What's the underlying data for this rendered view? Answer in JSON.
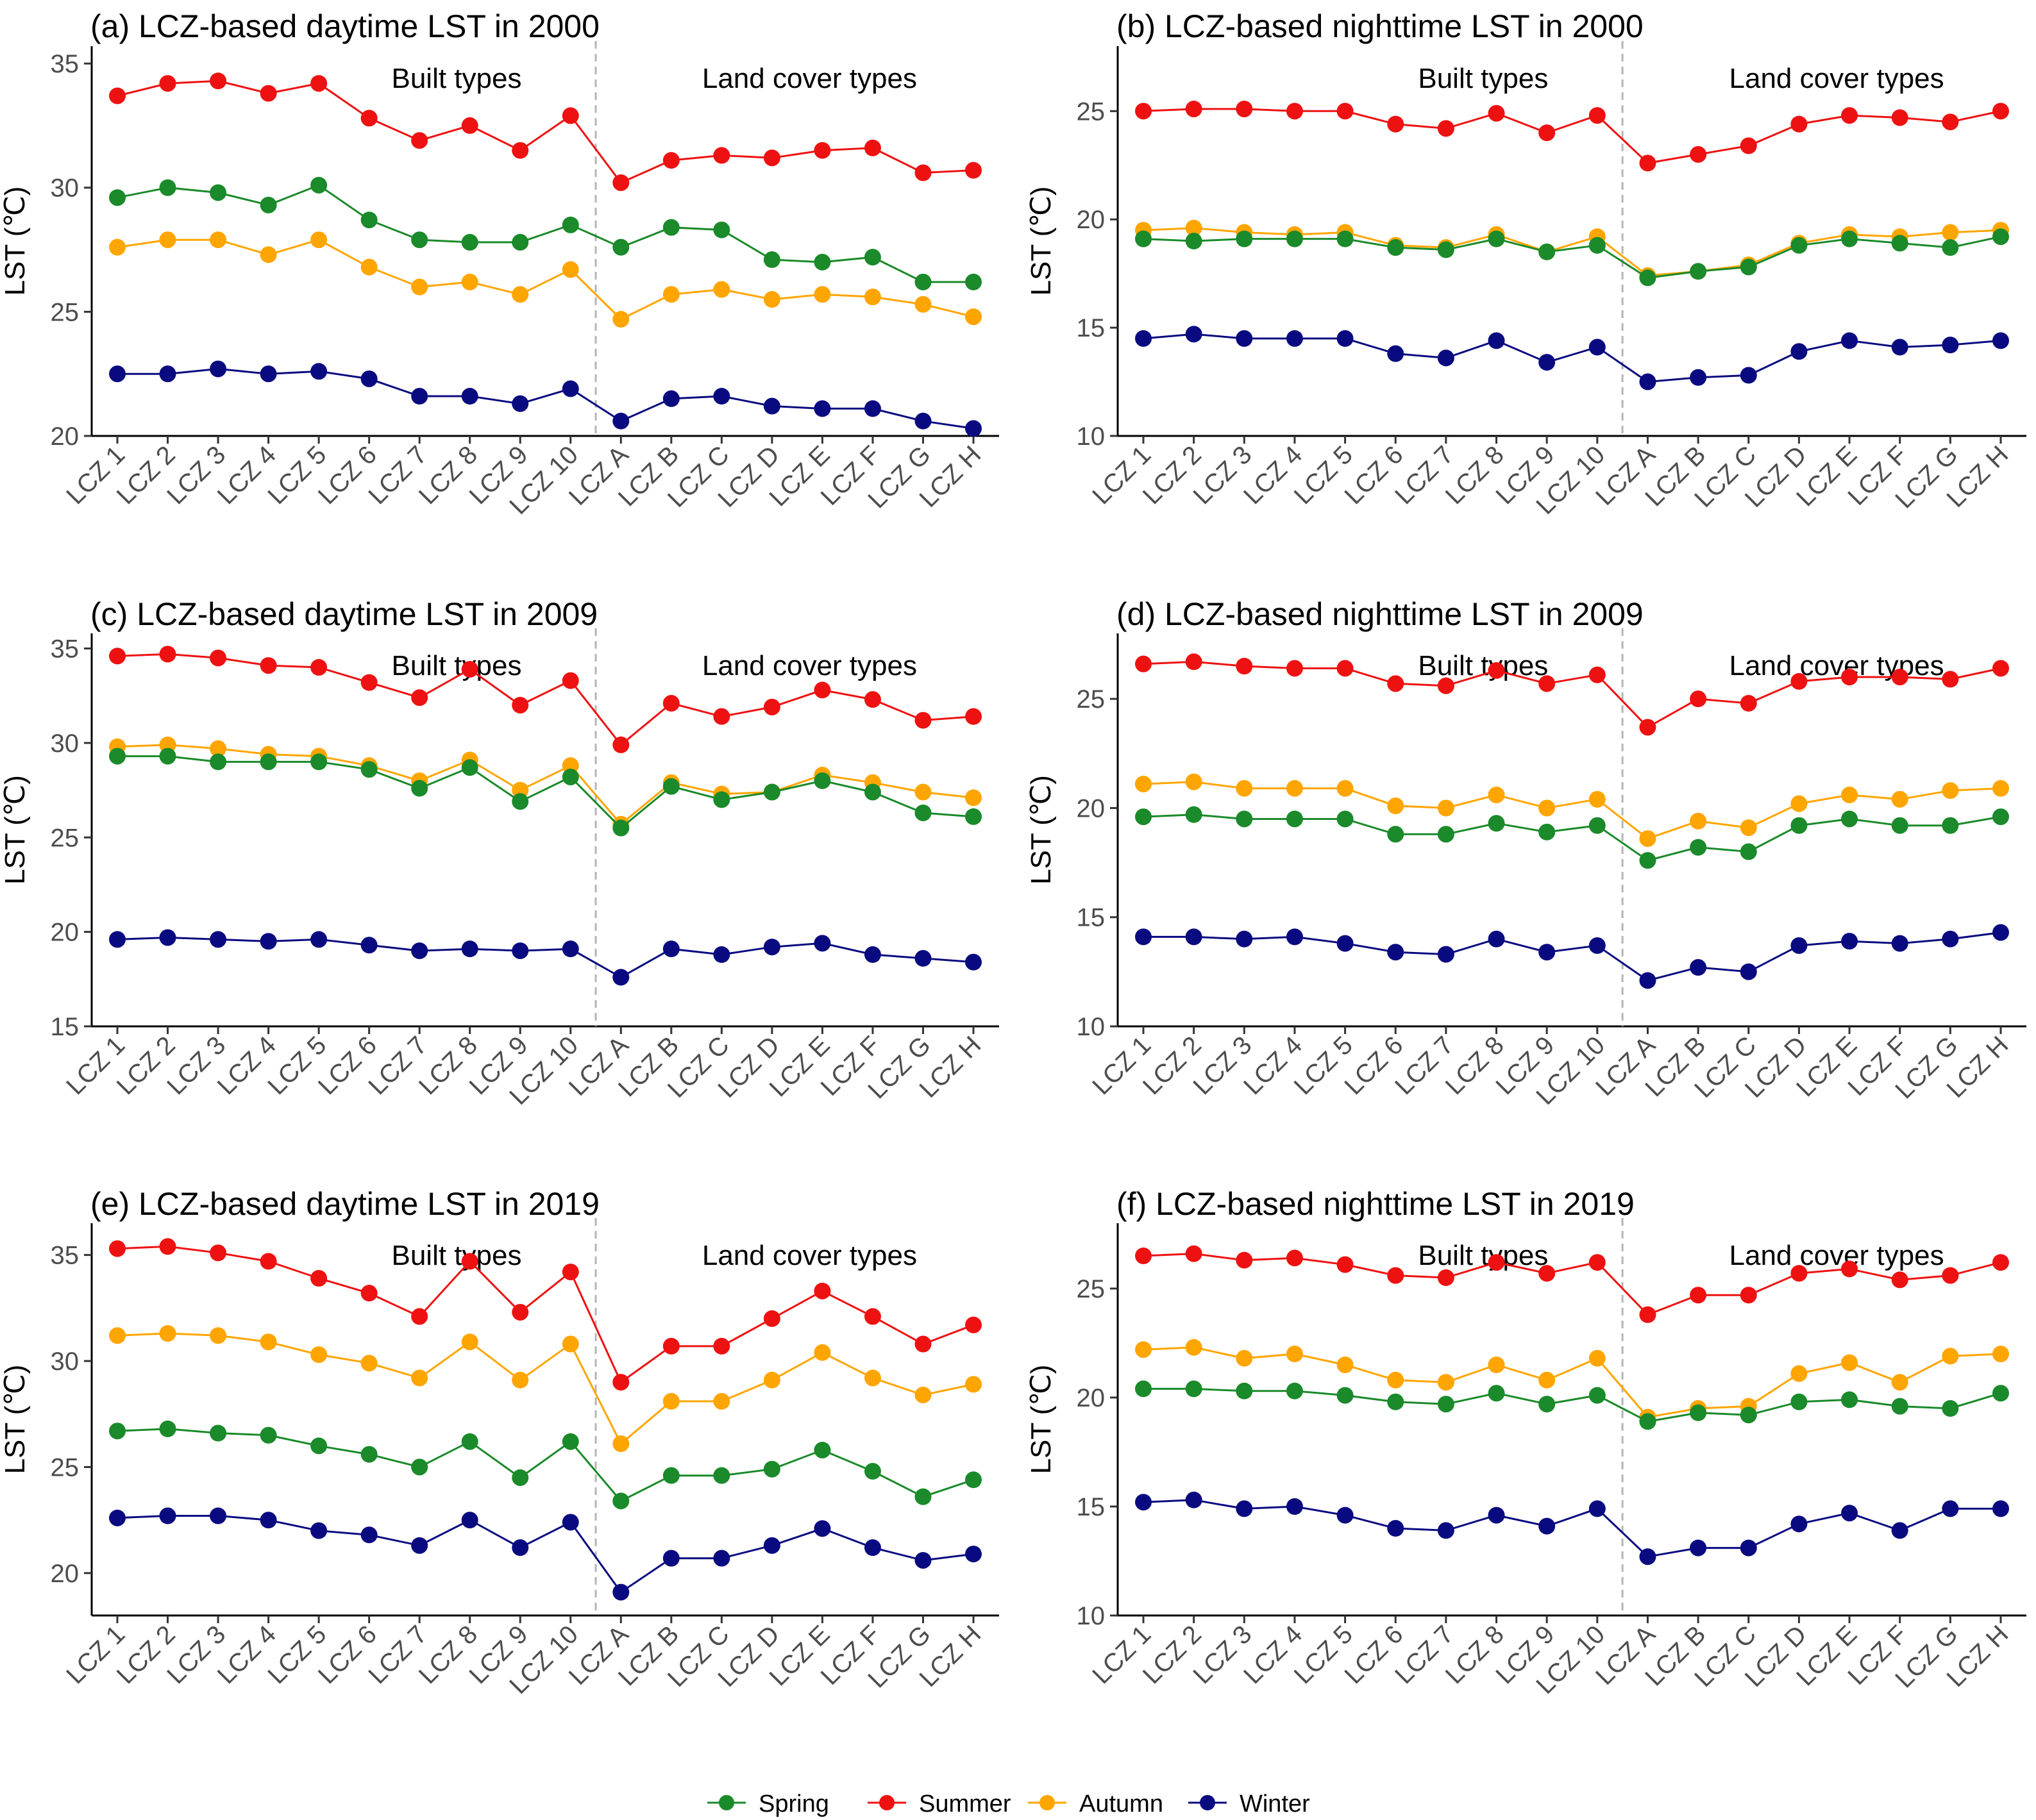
{
  "chart_data": {
    "type": "line",
    "legend": {
      "position": "bottom",
      "entries": [
        {
          "name": "Spring",
          "color": "#1a8a2a"
        },
        {
          "name": "Summer",
          "color": "#ee1111"
        },
        {
          "name": "Autumn",
          "color": "#ffa500"
        },
        {
          "name": "Winter",
          "color": "#0a0a80"
        }
      ]
    },
    "categories": [
      "LCZ 1",
      "LCZ 2",
      "LCZ 3",
      "LCZ 4",
      "LCZ 5",
      "LCZ 6",
      "LCZ 7",
      "LCZ 8",
      "LCZ 9",
      "LCZ 10",
      "LCZ A",
      "LCZ B",
      "LCZ C",
      "LCZ D",
      "LCZ E",
      "LCZ F",
      "LCZ G",
      "LCZ H"
    ],
    "group_labels": {
      "built": "Built types",
      "land": "Land cover types"
    },
    "ylabel": "LST (℃)",
    "panels": [
      {
        "title": "(a) LCZ-based daytime LST in 2000",
        "ylim": [
          20,
          35.7
        ],
        "yticks": [
          20,
          25,
          30,
          35
        ],
        "series": [
          {
            "name": "Spring",
            "values": [
              29.6,
              30.0,
              29.8,
              29.3,
              30.1,
              28.7,
              27.9,
              27.8,
              27.8,
              28.5,
              27.6,
              28.4,
              28.3,
              27.1,
              27.0,
              27.2,
              26.2,
              26.2
            ]
          },
          {
            "name": "Summer",
            "values": [
              33.7,
              34.2,
              34.3,
              33.8,
              34.2,
              32.8,
              31.9,
              32.5,
              31.5,
              32.9,
              30.2,
              31.1,
              31.3,
              31.2,
              31.5,
              31.6,
              30.6,
              30.7
            ]
          },
          {
            "name": "Autumn",
            "values": [
              27.6,
              27.9,
              27.9,
              27.3,
              27.9,
              26.8,
              26.0,
              26.2,
              25.7,
              26.7,
              24.7,
              25.7,
              25.9,
              25.5,
              25.7,
              25.6,
              25.3,
              24.8
            ]
          },
          {
            "name": "Winter",
            "values": [
              22.5,
              22.5,
              22.7,
              22.5,
              22.6,
              22.3,
              21.6,
              21.6,
              21.3,
              21.9,
              20.6,
              21.5,
              21.6,
              21.2,
              21.1,
              21.1,
              20.6,
              20.3
            ]
          }
        ]
      },
      {
        "title": "(b) LCZ-based nighttime LST in 2000",
        "ylim": [
          10,
          28
        ],
        "yticks": [
          10,
          15,
          20,
          25
        ],
        "series": [
          {
            "name": "Spring",
            "values": [
              19.1,
              19.0,
              19.1,
              19.1,
              19.1,
              18.7,
              18.6,
              19.1,
              18.5,
              18.8,
              17.3,
              17.6,
              17.8,
              18.8,
              19.1,
              18.9,
              18.7,
              19.2
            ]
          },
          {
            "name": "Summer",
            "values": [
              25.0,
              25.1,
              25.1,
              25.0,
              25.0,
              24.4,
              24.2,
              24.9,
              24.0,
              24.8,
              22.6,
              23.0,
              23.4,
              24.4,
              24.8,
              24.7,
              24.5,
              25.0
            ]
          },
          {
            "name": "Autumn",
            "values": [
              19.5,
              19.6,
              19.4,
              19.3,
              19.4,
              18.8,
              18.7,
              19.3,
              18.5,
              19.2,
              17.4,
              17.6,
              17.9,
              18.9,
              19.3,
              19.2,
              19.4,
              19.5
            ]
          },
          {
            "name": "Winter",
            "values": [
              14.5,
              14.7,
              14.5,
              14.5,
              14.5,
              13.8,
              13.6,
              14.4,
              13.4,
              14.1,
              12.5,
              12.7,
              12.8,
              13.9,
              14.4,
              14.1,
              14.2,
              14.4
            ]
          }
        ]
      },
      {
        "title": "(c) LCZ-based daytime LST in 2009",
        "ylim": [
          15,
          35.8
        ],
        "yticks": [
          15,
          20,
          25,
          30,
          35
        ],
        "series": [
          {
            "name": "Spring",
            "values": [
              29.3,
              29.3,
              29.0,
              29.0,
              29.0,
              28.6,
              27.6,
              28.7,
              26.9,
              28.2,
              25.5,
              27.7,
              27.0,
              27.4,
              28.0,
              27.4,
              26.3,
              26.1
            ]
          },
          {
            "name": "Summer",
            "values": [
              34.6,
              34.7,
              34.5,
              34.1,
              34.0,
              33.2,
              32.4,
              33.9,
              32.0,
              33.3,
              29.9,
              32.1,
              31.4,
              31.9,
              32.8,
              32.3,
              31.2,
              31.4
            ]
          },
          {
            "name": "Autumn",
            "values": [
              29.8,
              29.9,
              29.7,
              29.4,
              29.3,
              28.8,
              28.0,
              29.1,
              27.5,
              28.8,
              25.7,
              27.9,
              27.3,
              27.4,
              28.3,
              27.9,
              27.4,
              27.1
            ]
          },
          {
            "name": "Winter",
            "values": [
              19.6,
              19.7,
              19.6,
              19.5,
              19.6,
              19.3,
              19.0,
              19.1,
              19.0,
              19.1,
              17.6,
              19.1,
              18.8,
              19.2,
              19.4,
              18.8,
              18.6,
              18.4
            ]
          }
        ]
      },
      {
        "title": "(d) LCZ-based nighttime LST in 2009",
        "ylim": [
          10,
          28
        ],
        "yticks": [
          10,
          15,
          20,
          25
        ],
        "series": [
          {
            "name": "Spring",
            "values": [
              19.6,
              19.7,
              19.5,
              19.5,
              19.5,
              18.8,
              18.8,
              19.3,
              18.9,
              19.2,
              17.6,
              18.2,
              18.0,
              19.2,
              19.5,
              19.2,
              19.2,
              19.6
            ]
          },
          {
            "name": "Summer",
            "values": [
              26.6,
              26.7,
              26.5,
              26.4,
              26.4,
              25.7,
              25.6,
              26.3,
              25.7,
              26.1,
              23.7,
              25.0,
              24.8,
              25.8,
              26.0,
              26.0,
              25.9,
              26.4
            ]
          },
          {
            "name": "Autumn",
            "values": [
              21.1,
              21.2,
              20.9,
              20.9,
              20.9,
              20.1,
              20.0,
              20.6,
              20.0,
              20.4,
              18.6,
              19.4,
              19.1,
              20.2,
              20.6,
              20.4,
              20.8,
              20.9
            ]
          },
          {
            "name": "Winter",
            "values": [
              14.1,
              14.1,
              14.0,
              14.1,
              13.8,
              13.4,
              13.3,
              14.0,
              13.4,
              13.7,
              12.1,
              12.7,
              12.5,
              13.7,
              13.9,
              13.8,
              14.0,
              14.3
            ]
          }
        ]
      },
      {
        "title": "(e) LCZ-based daytime LST in 2019",
        "ylim": [
          18,
          36.5
        ],
        "yticks": [
          20,
          25,
          30,
          35
        ],
        "series": [
          {
            "name": "Spring",
            "values": [
              26.7,
              26.8,
              26.6,
              26.5,
              26.0,
              25.6,
              25.0,
              26.2,
              24.5,
              26.2,
              23.4,
              24.6,
              24.6,
              24.9,
              25.8,
              24.8,
              23.6,
              24.4
            ]
          },
          {
            "name": "Summer",
            "values": [
              35.3,
              35.4,
              35.1,
              34.7,
              33.9,
              33.2,
              32.1,
              34.7,
              32.3,
              34.2,
              29.0,
              30.7,
              30.7,
              32.0,
              33.3,
              32.1,
              30.8,
              31.7
            ]
          },
          {
            "name": "Autumn",
            "values": [
              31.2,
              31.3,
              31.2,
              30.9,
              30.3,
              29.9,
              29.2,
              30.9,
              29.1,
              30.8,
              26.1,
              28.1,
              28.1,
              29.1,
              30.4,
              29.2,
              28.4,
              28.9
            ]
          },
          {
            "name": "Winter",
            "values": [
              22.6,
              22.7,
              22.7,
              22.5,
              22.0,
              21.8,
              21.3,
              22.5,
              21.2,
              22.4,
              19.1,
              20.7,
              20.7,
              21.3,
              22.1,
              21.2,
              20.6,
              20.9
            ]
          }
        ]
      },
      {
        "title": "(f) LCZ-based nighttime LST in 2019",
        "ylim": [
          10,
          28
        ],
        "yticks": [
          10,
          15,
          20,
          25
        ],
        "series": [
          {
            "name": "Spring",
            "values": [
              20.4,
              20.4,
              20.3,
              20.3,
              20.1,
              19.8,
              19.7,
              20.2,
              19.7,
              20.1,
              18.9,
              19.3,
              19.2,
              19.8,
              19.9,
              19.6,
              19.5,
              20.2
            ]
          },
          {
            "name": "Summer",
            "values": [
              26.5,
              26.6,
              26.3,
              26.4,
              26.1,
              25.6,
              25.5,
              26.2,
              25.7,
              26.2,
              23.8,
              24.7,
              24.7,
              25.7,
              25.9,
              25.4,
              25.6,
              26.2
            ]
          },
          {
            "name": "Autumn",
            "values": [
              22.2,
              22.3,
              21.8,
              22.0,
              21.5,
              20.8,
              20.7,
              21.5,
              20.8,
              21.8,
              19.1,
              19.5,
              19.6,
              21.1,
              21.6,
              20.7,
              21.9,
              22.0
            ]
          },
          {
            "name": "Winter",
            "values": [
              15.2,
              15.3,
              14.9,
              15.0,
              14.6,
              14.0,
              13.9,
              14.6,
              14.1,
              14.9,
              12.7,
              13.1,
              13.1,
              14.2,
              14.7,
              13.9,
              14.9,
              14.9
            ]
          }
        ]
      }
    ]
  }
}
